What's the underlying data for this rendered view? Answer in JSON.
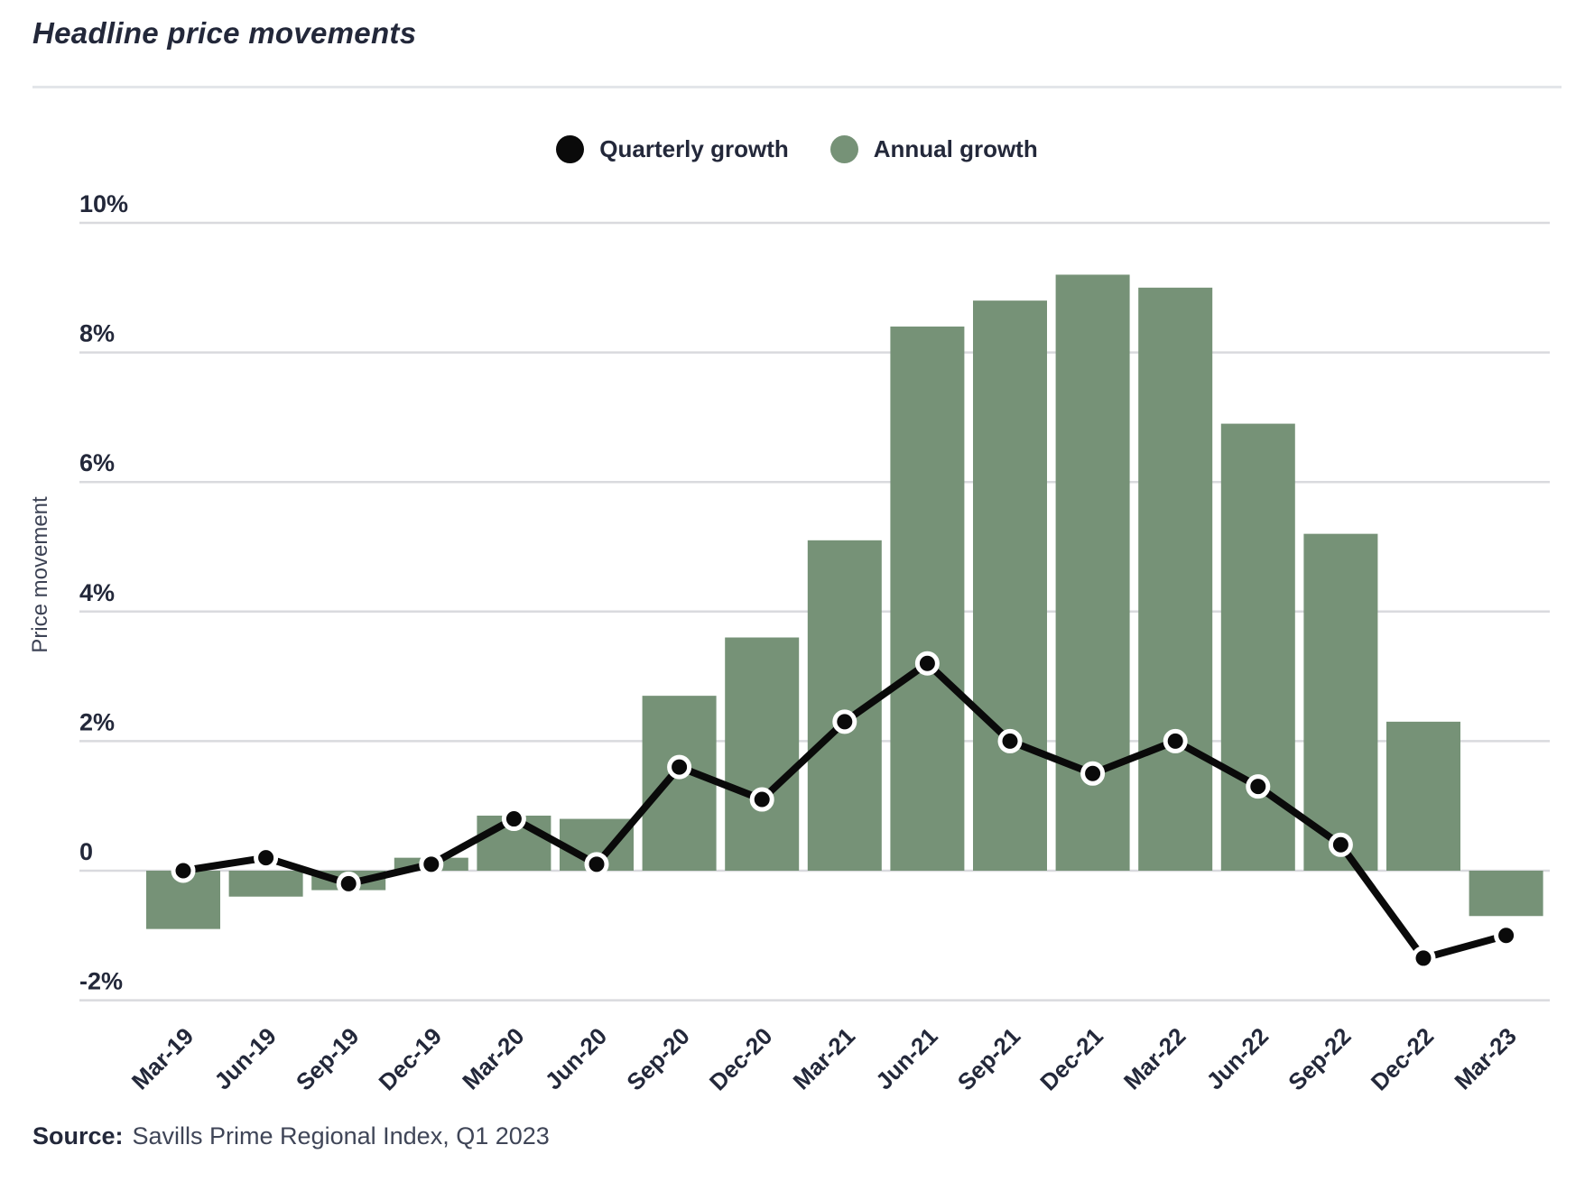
{
  "header": {
    "title": "Headline price movements"
  },
  "legend": {
    "items": [
      {
        "label": "Quarterly growth",
        "color": "#0a0a0a"
      },
      {
        "label": "Annual growth",
        "color": "#769277"
      }
    ]
  },
  "source": {
    "prefix": "Source:",
    "text": "Savills Prime Regional Index, Q1 2023"
  },
  "chart_data": {
    "type": "bar+line",
    "title": "Headline price movements",
    "xlabel": "",
    "ylabel": "Price movement",
    "categories": [
      "Mar-19",
      "Jun-19",
      "Sep-19",
      "Dec-19",
      "Mar-20",
      "Jun-20",
      "Sep-20",
      "Dec-20",
      "Mar-21",
      "Jun-21",
      "Sep-21",
      "Dec-21",
      "Mar-22",
      "Jun-22",
      "Sep-22",
      "Dec-22",
      "Mar-23"
    ],
    "series": [
      {
        "name": "Annual growth",
        "type": "bar",
        "color": "#769277",
        "values": [
          -0.9,
          -0.4,
          -0.3,
          0.2,
          0.85,
          0.8,
          2.7,
          3.6,
          5.1,
          8.4,
          8.8,
          9.2,
          9.0,
          6.9,
          5.2,
          2.3,
          -0.7
        ]
      },
      {
        "name": "Quarterly growth",
        "type": "line",
        "color": "#0a0a0a",
        "values": [
          0.0,
          0.2,
          -0.2,
          0.1,
          0.8,
          0.1,
          1.6,
          1.1,
          2.3,
          3.2,
          2.0,
          1.5,
          2.0,
          1.3,
          0.4,
          -1.35,
          -1.0
        ]
      }
    ],
    "yticks": [
      {
        "value": 10,
        "label": "10%"
      },
      {
        "value": 8,
        "label": "8%"
      },
      {
        "value": 6,
        "label": "6%"
      },
      {
        "value": 4,
        "label": "4%"
      },
      {
        "value": 2,
        "label": "2%"
      },
      {
        "value": 0,
        "label": "0"
      },
      {
        "value": -2,
        "label": "-2%"
      }
    ],
    "ylim": [
      -2,
      10
    ],
    "grid": true,
    "grid_color": "#d9dade",
    "axis_text_color": "#23283a",
    "legend_position": "top-center"
  }
}
